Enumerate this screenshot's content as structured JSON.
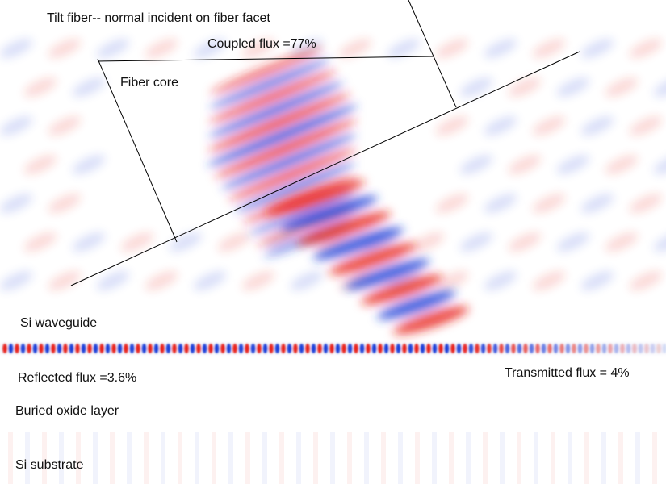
{
  "title": "Tilt fiber-- normal incident on fiber facet",
  "labels": {
    "coupled_flux": "Coupled flux =77%",
    "fiber_core": "Fiber core",
    "si_waveguide": "Si waveguide",
    "reflected_flux": "Reflected flux =3.6%",
    "transmitted_flux": "Transmitted flux = 4%",
    "buried_oxide": "Buried oxide layer",
    "si_substrate": "Si substrate"
  },
  "colors": {
    "positive_field": "#e8201a",
    "negative_field": "#1f3fd8",
    "background": "#ffffff",
    "outline": "#000000"
  }
}
